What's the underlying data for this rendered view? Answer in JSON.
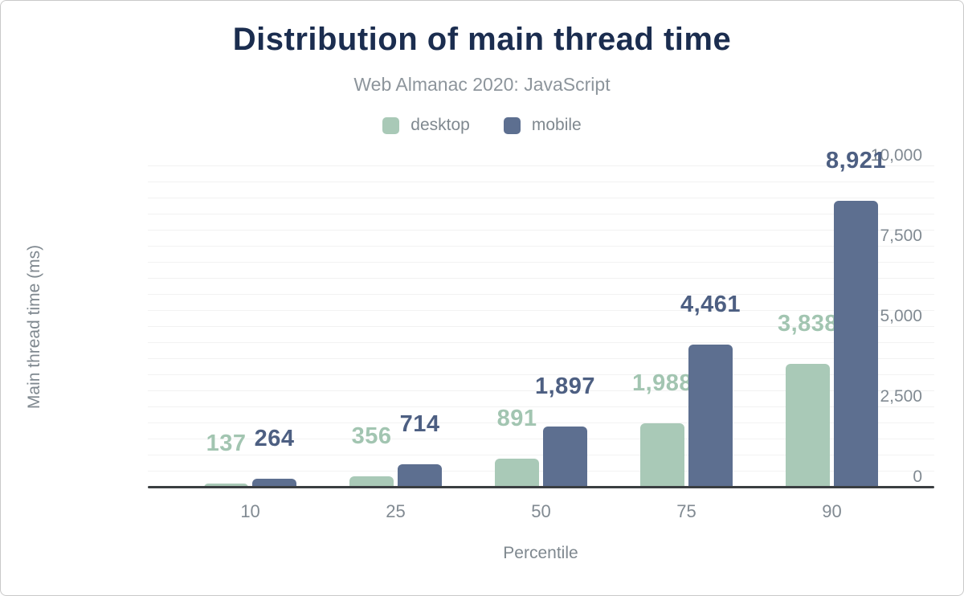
{
  "header": {
    "title": "Distribution of main thread time",
    "subtitle": "Web Almanac 2020: JavaScript"
  },
  "chart_data": {
    "type": "bar",
    "title": "Distribution of main thread time",
    "subtitle": "Web Almanac 2020: JavaScript",
    "categories": [
      "10",
      "25",
      "50",
      "75",
      "90"
    ],
    "series": [
      {
        "name": "desktop",
        "color": "#a9c9b7",
        "label_color": "#a2c5b1",
        "values": [
          137,
          356,
          891,
          1988,
          3838
        ]
      },
      {
        "name": "mobile",
        "color": "#5d6f90",
        "label_color": "#4d5f82",
        "values": [
          264,
          714,
          1897,
          4461,
          8921
        ]
      }
    ],
    "xlabel": "Percentile",
    "ylabel": "Main thread time (ms)",
    "ylim": [
      0,
      10000
    ],
    "ytick_step": 2500,
    "ytick_labels": [
      "0",
      "2,500",
      "5,000",
      "7,500",
      "10,000"
    ],
    "grid": true,
    "grid_step": 500,
    "legend_position": "top",
    "colors": {
      "title": "#1b2d4f",
      "subtitle": "#8d959c",
      "axis_text": "#818a92",
      "gridline": "#f2f2f2",
      "zero_line": "#3a3e41"
    }
  }
}
